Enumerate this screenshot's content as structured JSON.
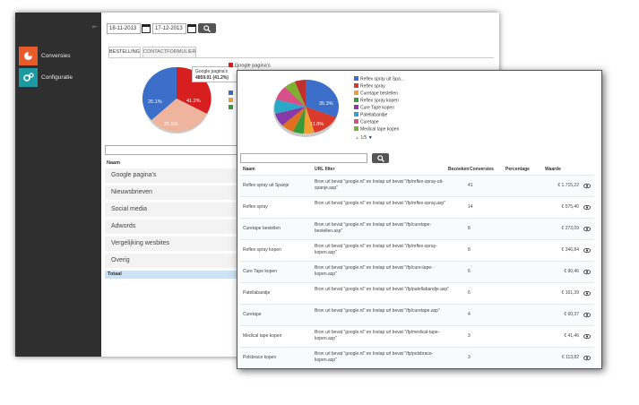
{
  "back_window": {
    "sidebar": {
      "collapse_icon": "collapse-icon",
      "items": [
        {
          "label": "Conversies",
          "icon": "pie-chart-icon",
          "color": "#e85a2a"
        },
        {
          "label": "Configuratie",
          "icon": "gears-icon",
          "color": "#1c9aa2"
        }
      ]
    },
    "date_from": "18-11-2013",
    "date_to": "17-12-2013",
    "tabs": [
      {
        "label": "BESTELLING",
        "active": true
      },
      {
        "label": "CONTACTFORMULIER",
        "active": false
      }
    ],
    "tooltip": {
      "title": "Google pagina's",
      "value": "4859.01 (41.2%)"
    },
    "pie_labels": {
      "large": "41.2%",
      "blue": "25.1%",
      "pink": "25.5%"
    },
    "legend_top": "Google pagina's",
    "table_header": "Naam",
    "rows": [
      "Google pagina's",
      "Nieuwsbrieven",
      "Social media",
      "Adwords",
      "Vergelijking wesbites",
      "Overig"
    ],
    "total_label": "Totaal"
  },
  "front_window": {
    "pie_labels": {
      "blue": "35.3%",
      "red": "11.8%"
    },
    "legend": [
      {
        "label": "Reflex spray uit Spa...",
        "color": "#3b6fc9"
      },
      {
        "label": "Reflex spray",
        "color": "#d93a2b"
      },
      {
        "label": "Curetape bestellen",
        "color": "#f0a030"
      },
      {
        "label": "Reflex spray kopen",
        "color": "#3a9a3a"
      },
      {
        "label": "Cure Tape kopen",
        "color": "#8a3aa8"
      },
      {
        "label": "Patellabandje",
        "color": "#2aa8c8"
      },
      {
        "label": "Curetape",
        "color": "#d8508a"
      },
      {
        "label": "Medical tape kopen",
        "color": "#80b030"
      }
    ],
    "pager": "1/5",
    "headers": {
      "name": "Naam",
      "url": "URL filter",
      "visits": "Bezoeken",
      "conversions": "Conversies",
      "percentage": "Percentage",
      "value": "Waarde"
    },
    "rows": [
      {
        "name": "Reflex spray uit Spanje",
        "url": "Bron url bevat \"google.nl\" en Instap url bevat \"/fp/reflex-spray-uit-spanje.asp\"",
        "conversions": "41",
        "value": "€ 1.715,22"
      },
      {
        "name": "Reflex spray",
        "url": "Bron url bevat \"google.nl\" en Instap url bevat \"/fp/reflex-spray.asp\"",
        "conversions": "14",
        "value": "€ 575,40"
      },
      {
        "name": "Curetape bestellen",
        "url": "Bron url bevat \"google.nl\" en Instap url bevat \"/fp/curetape-bestellen.asp\"",
        "conversions": "8",
        "value": "€ 273,09"
      },
      {
        "name": "Reflex spray kopen",
        "url": "Bron url bevat \"google.nl\" en Instap url bevat \"/fp/reflex-spray-kopen.asp\"",
        "conversions": "8",
        "value": "€ 346,84"
      },
      {
        "name": "Cure Tape kopen",
        "url": "Bron url bevat \"google.nl\" en Instap url bevat \"/fp/cure-tape-kopen.asp\"",
        "conversions": "6",
        "value": "€ 90,46"
      },
      {
        "name": "Patellabandje",
        "url": "Bron url bevat \"google.nl\" en Instap url bevat \"/fp/patellabandje.asp\"",
        "conversions": "6",
        "value": "€ 161,39"
      },
      {
        "name": "Curetape",
        "url": "Bron url bevat \"google.nl\" en Instap url bevat \"/fp/curetape.asp\"",
        "conversions": "4",
        "value": "€ 60,37"
      },
      {
        "name": "Medical tape kopen",
        "url": "Bron url bevat \"google.nl\" en Instap url bevat \"/fp/medical-tape-kopen.asp\"",
        "conversions": "3",
        "value": "€ 41,46"
      },
      {
        "name": "Polsbrace kopen",
        "url": "Bron url bevat \"google.nl\" en Instap url bevat \"/fp/polsbrace-kopen.asp\"",
        "conversions": "3",
        "value": "€ 113,82"
      }
    ]
  }
}
